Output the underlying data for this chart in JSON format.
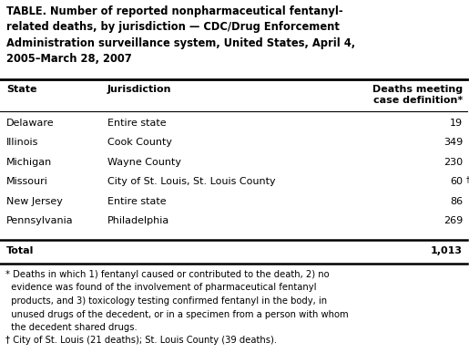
{
  "title_lines": [
    "TABLE. Number of reported nonpharmaceutical fentanyl-",
    "related deaths, by jurisdiction — CDC/Drug Enforcement",
    "Administration surveillance system, United States, April 4,",
    "2005–March 28, 2007"
  ],
  "rows": [
    [
      "Delaware",
      "Entire state",
      "19"
    ],
    [
      "Illinois",
      "Cook County",
      "349"
    ],
    [
      "Michigan",
      "Wayne County",
      "230"
    ],
    [
      "Missouri",
      "City of St. Louis, St. Louis County",
      "60†"
    ],
    [
      "New Jersey",
      "Entire state",
      "86"
    ],
    [
      "Pennsylvania",
      "Philadelphia",
      "269"
    ]
  ],
  "total_label": "Total",
  "total_value": "1,013",
  "footnotes": [
    "* Deaths in which 1) fentanyl caused or contributed to the death, 2) no",
    "  evidence was found of the involvement of pharmaceutical fentanyl",
    "  products, and 3) toxicology testing confirmed fentanyl in the body, in",
    "  unused drugs of the decedent, or in a specimen from a person with whom",
    "  the decedent shared drugs.",
    "† City of St. Louis (21 deaths); St. Louis County (39 deaths)."
  ],
  "bg_color": "#ffffff",
  "text_color": "#000000",
  "title_fontsize": 8.3,
  "body_fontsize": 8.0,
  "footnote_fontsize": 7.2
}
